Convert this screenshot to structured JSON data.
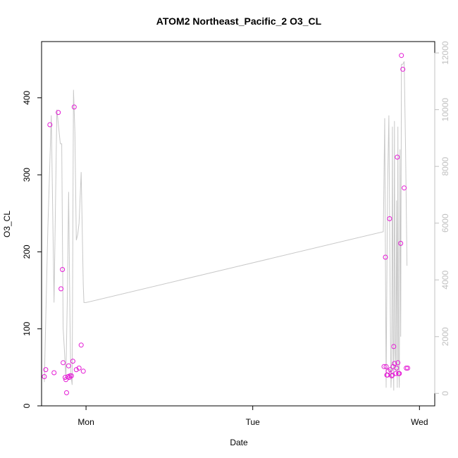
{
  "chart_data": {
    "type": "scatter",
    "title": "ATOM2 Northeast_Pacific_2 O3_CL",
    "xlabel": "Date",
    "ylabel": "O3_CL",
    "x_ticks": [
      "Mon",
      "Tue",
      "Wed"
    ],
    "x_tick_hours": [
      24,
      48,
      72
    ],
    "x_unit": "hours since Sun 00:00",
    "xlim": [
      17.6,
      74.2
    ],
    "ylim": [
      0,
      473
    ],
    "y_ticks": [
      0,
      100,
      200,
      300,
      400
    ],
    "y2lim": [
      -440,
      12400
    ],
    "y2_ticks": [
      0,
      2000,
      4000,
      6000,
      8000,
      10000,
      12000
    ],
    "colors": {
      "points": "#e41ad5",
      "line": "#c8c8c8",
      "axis": "#000000",
      "axis2": "#c0c0c0"
    },
    "series": [
      {
        "kind": "points",
        "axis": "left",
        "x": [
          18.0,
          18.2,
          18.8,
          19.4,
          20.0,
          20.4,
          20.6,
          20.7,
          21.0,
          21.1,
          21.2,
          21.4,
          21.5,
          21.6,
          21.7,
          21.9,
          22.1,
          22.3,
          22.6,
          23.0,
          23.3,
          23.6,
          66.9,
          67.1,
          67.2,
          67.3,
          67.4,
          67.5,
          67.7,
          67.8,
          68.0,
          68.1,
          68.2,
          68.3,
          68.4,
          68.6,
          68.7,
          68.8,
          68.9,
          69.0,
          69.1,
          69.3,
          69.4,
          69.6,
          69.8,
          70.1,
          70.3
        ],
        "y": [
          38,
          47,
          365,
          43,
          381,
          152,
          177,
          56,
          37,
          34,
          17,
          38,
          52,
          37,
          39,
          39,
          58,
          388,
          47,
          49,
          79,
          45,
          51,
          193,
          51,
          40,
          40,
          45,
          243,
          47,
          39,
          40,
          51,
          77,
          55,
          42,
          49,
          323,
          56,
          42,
          42,
          211,
          455,
          437,
          283,
          49,
          49
        ],
        "y_missing": false
      },
      {
        "kind": "line",
        "axis": "right",
        "x": [
          18.0,
          18.5,
          19.0,
          19.4,
          19.8,
          20.3,
          20.5,
          20.7,
          20.9,
          21.1,
          21.3,
          21.5,
          21.7,
          21.8,
          22.0,
          22.2,
          22.4,
          22.6,
          22.8,
          23.0,
          23.3,
          23.6,
          23.7,
          24.0,
          66.8,
          67.0,
          67.2,
          67.4,
          67.6,
          67.8,
          67.9,
          68.0,
          68.1,
          68.2,
          68.3,
          68.4,
          68.5,
          68.6,
          68.7,
          68.8,
          68.9,
          69.0,
          69.1,
          69.2,
          69.3,
          69.4,
          69.6,
          69.8,
          70.0,
          70.2
        ],
        "y": [
          400,
          5800,
          9800,
          3200,
          10000,
          8800,
          8800,
          2300,
          1500,
          500,
          3300,
          7100,
          2400,
          700,
          300,
          10700,
          9200,
          5400,
          5600,
          6000,
          7800,
          3800,
          3200,
          3200,
          5700,
          9700,
          200,
          7200,
          9800,
          2800,
          200,
          1000,
          9400,
          2000,
          100,
          9600,
          1500,
          800,
          6800,
          200,
          9400,
          1200,
          200,
          8600,
          2000,
          11600,
          11600,
          11700,
          8600,
          4500
        ]
      }
    ]
  }
}
